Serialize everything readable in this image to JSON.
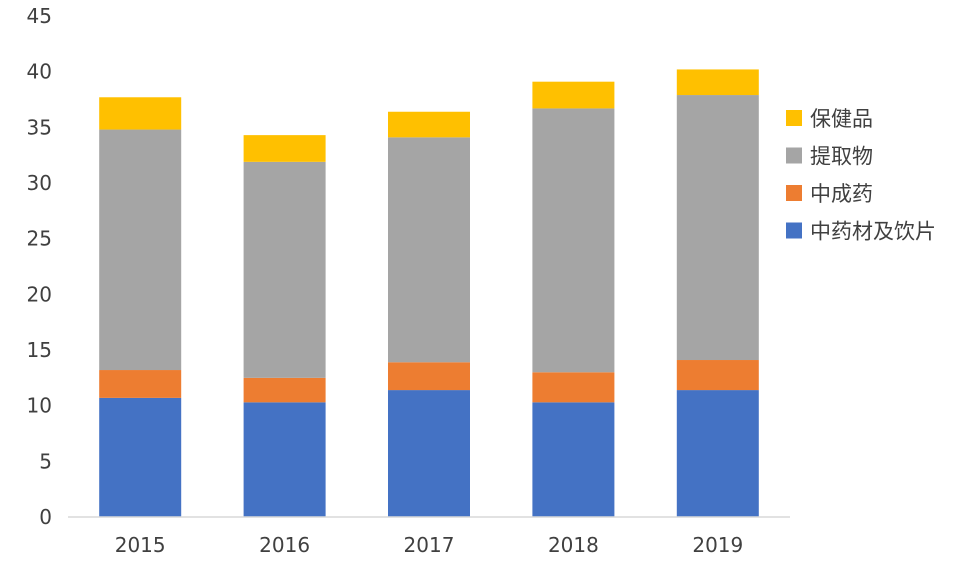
{
  "chart_data": {
    "type": "bar",
    "stacked": true,
    "categories": [
      "2015",
      "2016",
      "2017",
      "2018",
      "2019"
    ],
    "series": [
      {
        "name": "中药材及饮片",
        "color": "#4472C4",
        "values": [
          10.7,
          10.3,
          11.4,
          10.3,
          11.4
        ]
      },
      {
        "name": "中成药",
        "color": "#ED7D31",
        "values": [
          2.5,
          2.2,
          2.5,
          2.7,
          2.7
        ]
      },
      {
        "name": "提取物",
        "color": "#A5A5A5",
        "values": [
          21.6,
          19.4,
          20.2,
          23.7,
          23.8
        ]
      },
      {
        "name": "保健品",
        "color": "#FFC000",
        "values": [
          2.9,
          2.4,
          2.3,
          2.4,
          2.3
        ]
      }
    ],
    "yticks": [
      "0",
      "5",
      "10",
      "15",
      "20",
      "25",
      "30",
      "35",
      "40",
      "45"
    ],
    "ylim": [
      0,
      45
    ],
    "grid": false,
    "legend_position": "right",
    "legend_order": [
      "保健品",
      "提取物",
      "中成药",
      "中药材及饮片"
    ],
    "title": "",
    "xlabel": "",
    "ylabel": ""
  }
}
